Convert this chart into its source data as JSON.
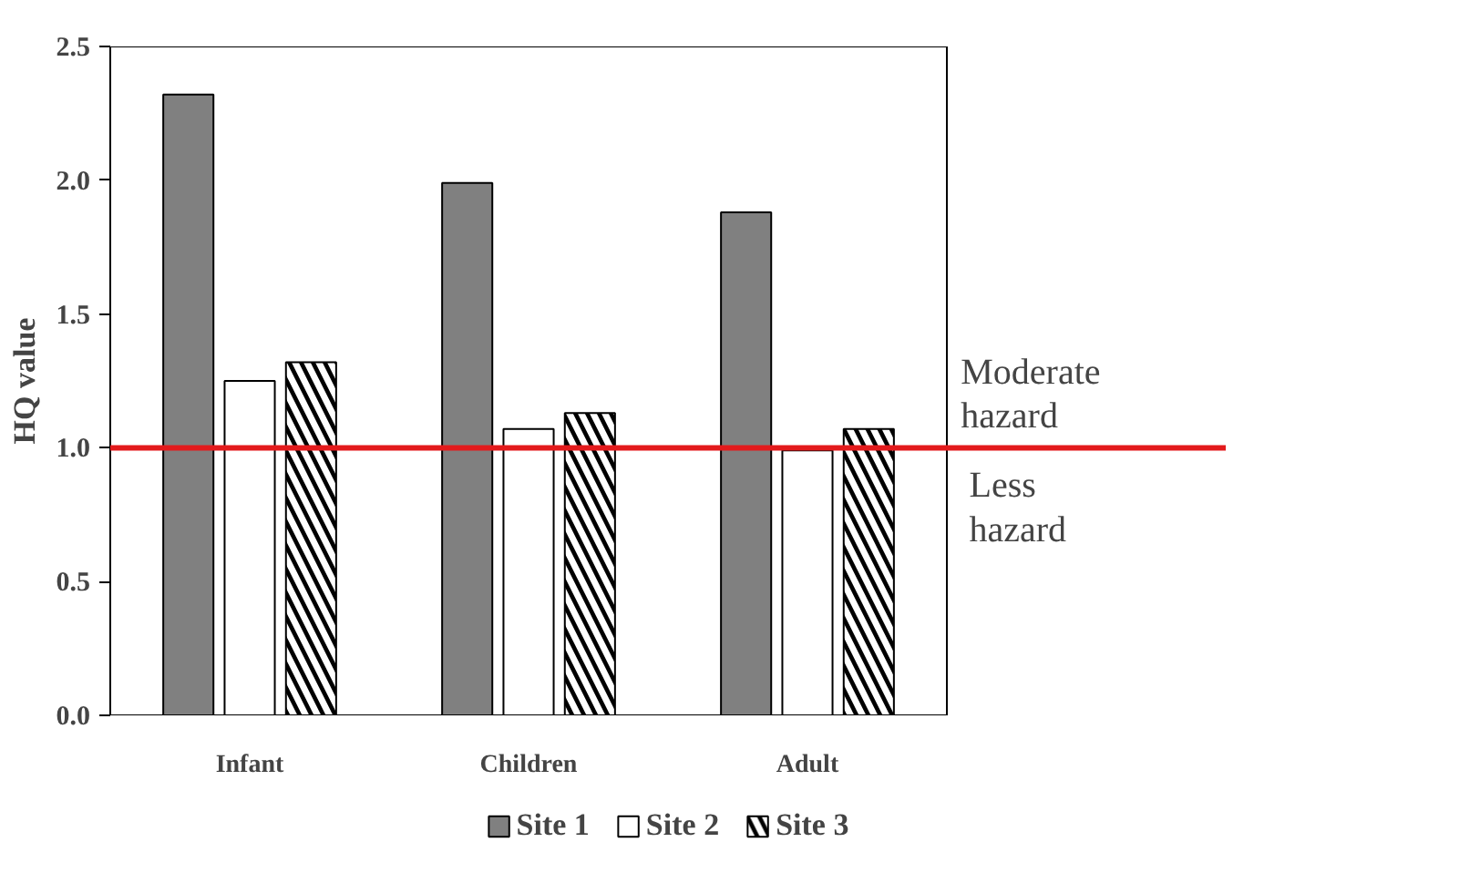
{
  "chart_data": {
    "type": "bar",
    "ylabel": "HQ value",
    "categories": [
      "Infant",
      "Children",
      "Adult"
    ],
    "series": [
      {
        "name": "Site 1",
        "color": "#808080",
        "values": [
          2.32,
          1.99,
          1.88
        ]
      },
      {
        "name": "Site 2",
        "color": "#ffffff",
        "values": [
          1.25,
          1.07,
          0.99
        ]
      },
      {
        "name": "Site 3",
        "color": "#000000",
        "values": [
          1.32,
          1.13,
          1.07
        ]
      }
    ],
    "ylim": [
      0,
      2.5
    ],
    "yticks": [
      {
        "value": 0,
        "label": "0.0"
      },
      {
        "value": 0.5,
        "label": "0.5"
      },
      {
        "value": 1,
        "label": "1.0"
      },
      {
        "value": 1.5,
        "label": "1.5"
      },
      {
        "value": 2,
        "label": "2.0"
      },
      {
        "value": 2.5,
        "label": "2.5"
      }
    ],
    "ref_lines": [
      {
        "axis": "y",
        "value": 1,
        "color": "#e31a1c"
      }
    ],
    "annotations": [
      "Moderate\nhazard",
      "Less\nhazard"
    ],
    "grid": false,
    "legend": "bottom"
  }
}
